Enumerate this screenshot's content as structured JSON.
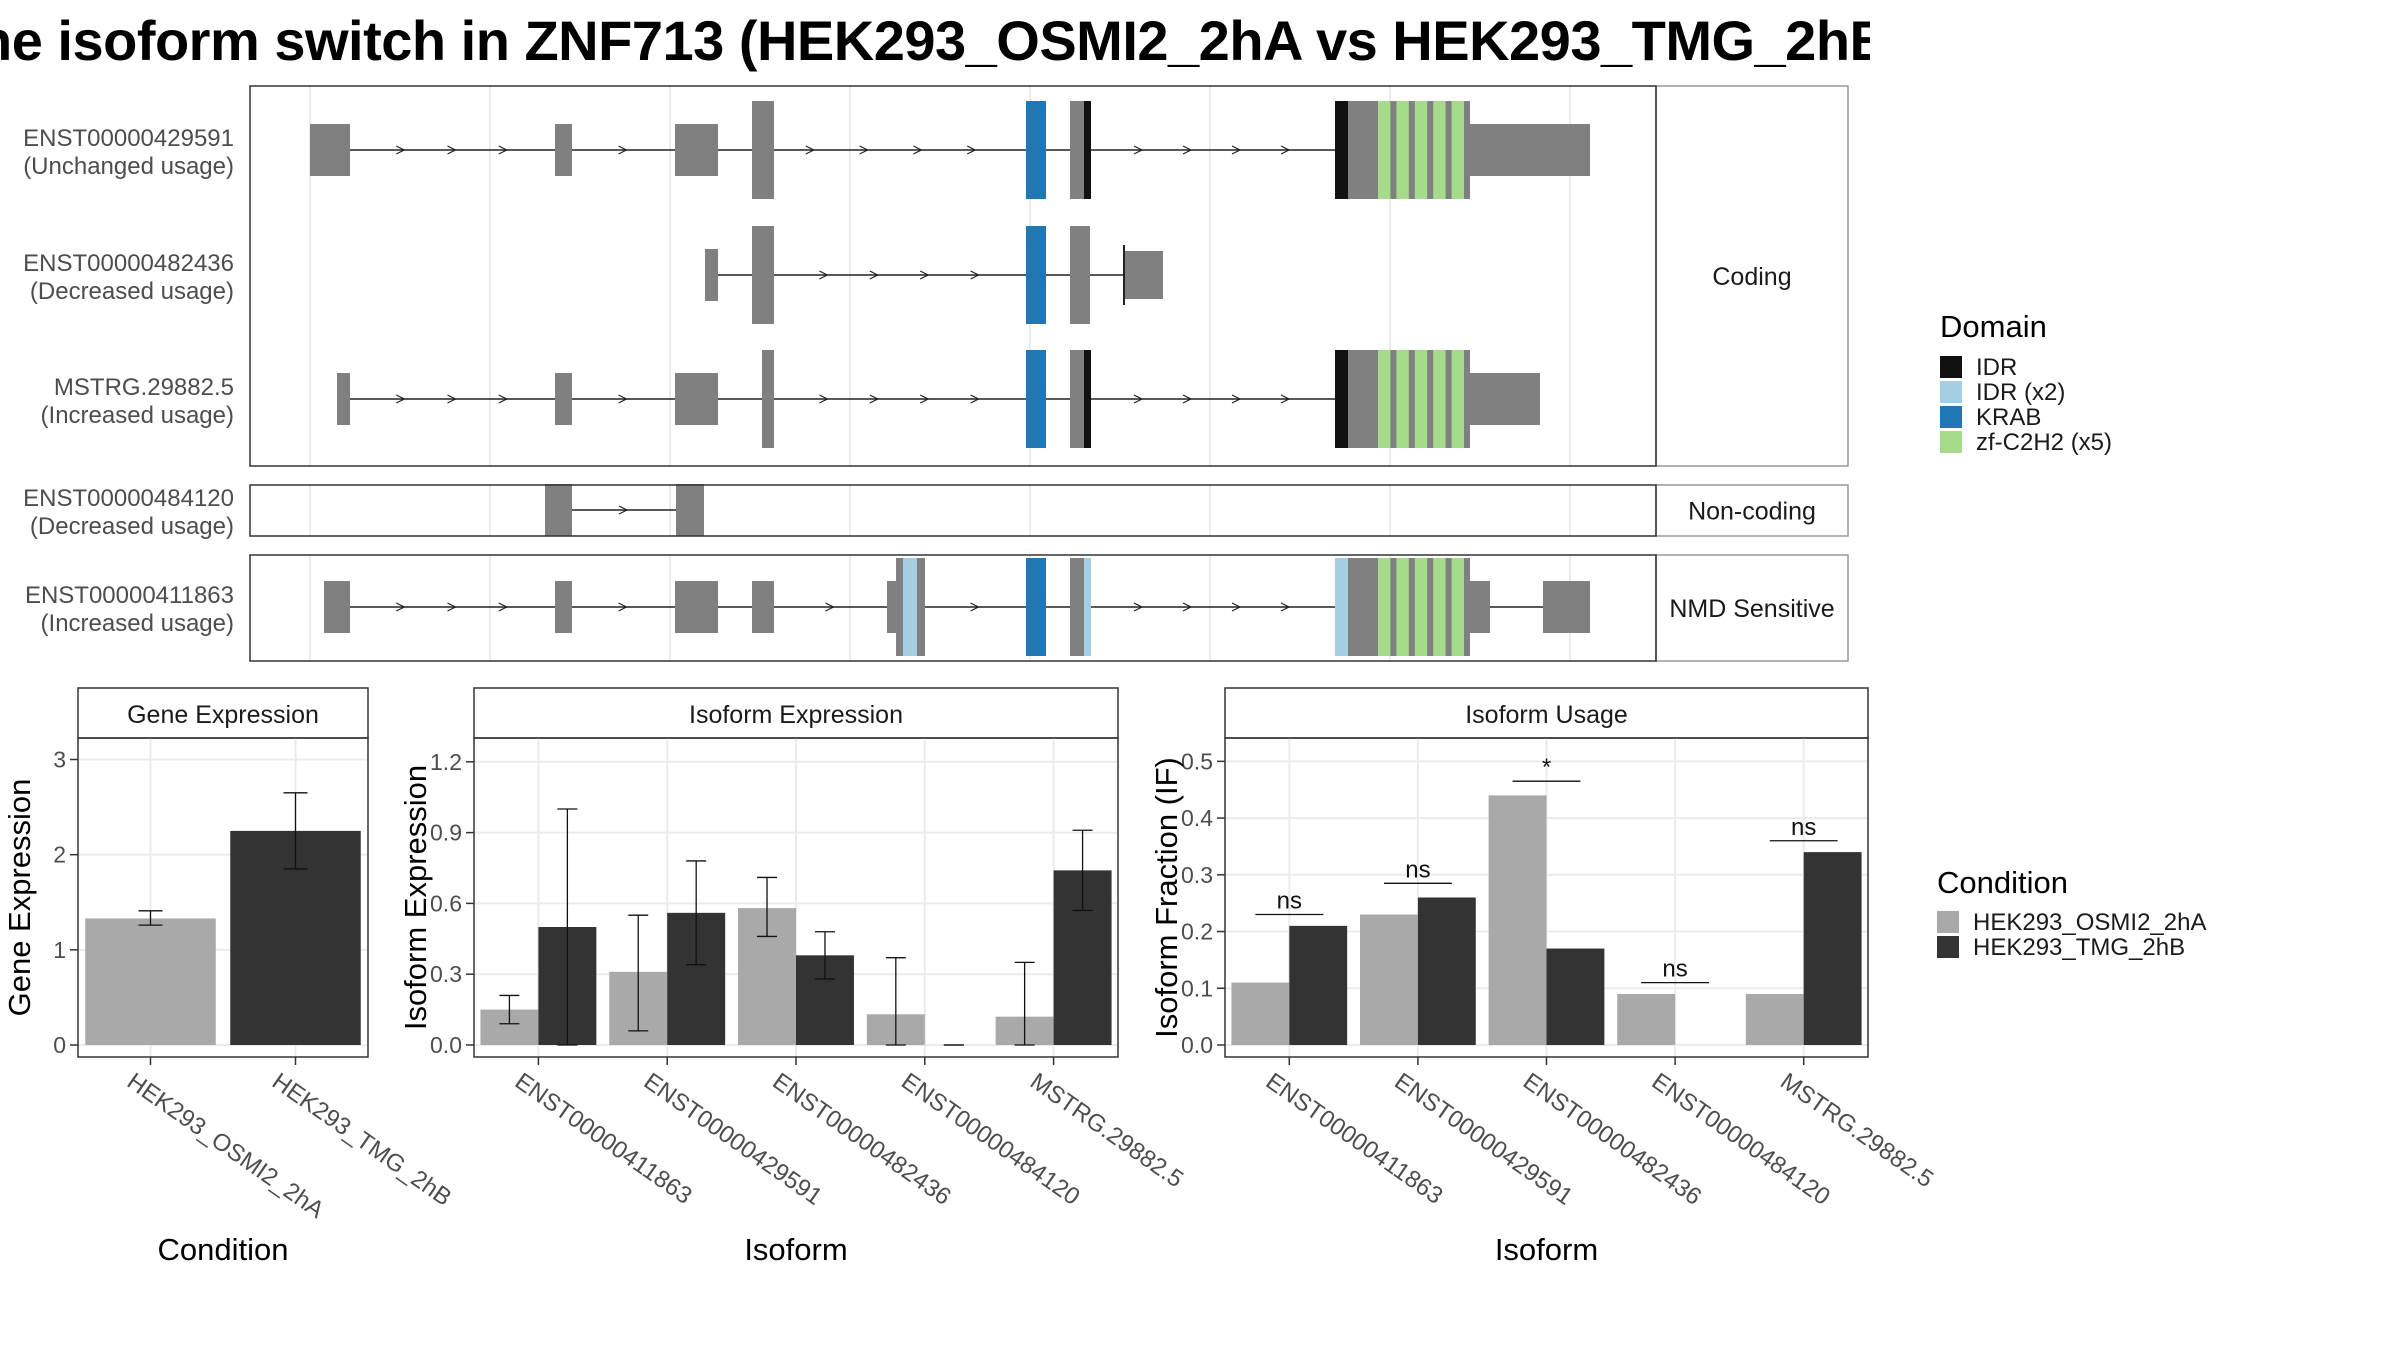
{
  "title": "he isoform switch in ZNF713 (HEK293_OSMI2_2hA vs HEK293_TMG_2hB",
  "colors": {
    "exon": "#808080",
    "IDR": "#111111",
    "IDR (x2)": "#a6cee3",
    "KRAB": "#1f78b4",
    "zf-C2H2 (x5)": "#a6db8c",
    "HEK293_OSMI2_2hA": "#a9a9a9",
    "HEK293_TMG_2hB": "#333333"
  },
  "structure": {
    "facets": [
      "Coding",
      "Non-coding",
      "NMD Sensitive"
    ],
    "isoforms": [
      {
        "id": "ENST00000429591",
        "usage": "(Unchanged usage)",
        "facet": 0
      },
      {
        "id": "ENST00000482436",
        "usage": "(Decreased usage)",
        "facet": 0
      },
      {
        "id": "MSTRG.29882.5",
        "usage": "(Increased usage)",
        "facet": 0
      },
      {
        "id": "ENST00000484120",
        "usage": "(Decreased usage)",
        "facet": 1
      },
      {
        "id": "ENST00000411863",
        "usage": "(Increased usage)",
        "facet": 2
      }
    ],
    "legend_title": "Domain",
    "legend": [
      "IDR",
      "IDR (x2)",
      "KRAB",
      "zf-C2H2 (x5)"
    ]
  },
  "chart_data": [
    {
      "type": "bar",
      "title": "Gene Expression",
      "xlabel": "Condition",
      "ylabel": "Gene Expression",
      "ylim": [
        0,
        3.1
      ],
      "yticks": [
        0,
        1,
        2,
        3
      ],
      "categories": [
        "HEK293_OSMI2_2hA",
        "HEK293_TMG_2hB"
      ],
      "values": [
        1.33,
        2.25
      ],
      "err_low": [
        1.26,
        1.85
      ],
      "err_high": [
        1.41,
        2.65
      ]
    },
    {
      "type": "bar",
      "title": "Isoform Expression",
      "xlabel": "Isoform",
      "ylabel": "Isoform Expression",
      "ylim": [
        0,
        1.25
      ],
      "yticks": [
        "0.0",
        "0.3",
        "0.6",
        "0.9",
        "1.2"
      ],
      "categories": [
        "ENST00000411863",
        "ENST00000429591",
        "ENST00000482436",
        "ENST00000484120",
        "MSTRG.29882.5"
      ],
      "series": [
        {
          "name": "HEK293_OSMI2_2hA",
          "values": [
            0.15,
            0.31,
            0.58,
            0.13,
            0.12
          ],
          "err_low": [
            0.09,
            0.06,
            0.46,
            0.0,
            0.0
          ],
          "err_high": [
            0.21,
            0.55,
            0.71,
            0.37,
            0.35
          ]
        },
        {
          "name": "HEK293_TMG_2hB",
          "values": [
            0.5,
            0.56,
            0.38,
            0.0,
            0.74
          ],
          "err_low": [
            0.0,
            0.34,
            0.28,
            0.0,
            0.57
          ],
          "err_high": [
            1.0,
            0.78,
            0.48,
            0.0,
            0.91
          ]
        }
      ]
    },
    {
      "type": "bar",
      "title": "Isoform Usage",
      "xlabel": "Isoform",
      "ylabel": "Isoform Fraction (IF)",
      "ylim": [
        0,
        0.52
      ],
      "yticks": [
        "0.0",
        "0.1",
        "0.2",
        "0.3",
        "0.4",
        "0.5"
      ],
      "categories": [
        "ENST00000411863",
        "ENST00000429591",
        "ENST00000482436",
        "ENST00000484120",
        "MSTRG.29882.5"
      ],
      "series": [
        {
          "name": "HEK293_OSMI2_2hA",
          "values": [
            0.11,
            0.23,
            0.44,
            0.09,
            0.09
          ]
        },
        {
          "name": "HEK293_TMG_2hB",
          "values": [
            0.21,
            0.26,
            0.17,
            0.0,
            0.34
          ]
        }
      ],
      "significance": [
        "ns",
        "ns",
        "*",
        "ns",
        "ns"
      ],
      "sig_y": [
        0.23,
        0.285,
        0.465,
        0.11,
        0.36
      ]
    }
  ],
  "condition_legend": {
    "title": "Condition",
    "items": [
      "HEK293_OSMI2_2hA",
      "HEK293_TMG_2hB"
    ]
  }
}
